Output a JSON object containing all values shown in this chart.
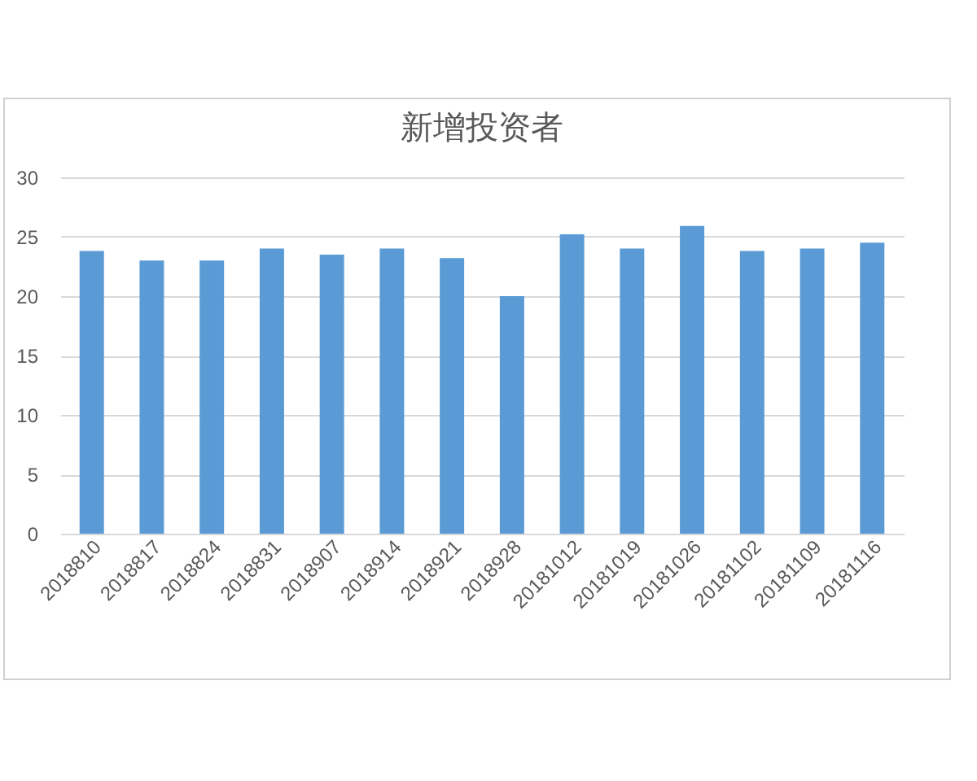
{
  "chart_data": {
    "type": "bar",
    "title": "新增投资者",
    "categories": [
      "2018810",
      "2018817",
      "2018824",
      "2018831",
      "2018907",
      "2018914",
      "2018921",
      "2018928",
      "20181012",
      "20181019",
      "20181026",
      "20181102",
      "20181109",
      "20181116"
    ],
    "values": [
      23.8,
      23.0,
      23.0,
      24.0,
      23.5,
      24.0,
      23.2,
      20.0,
      25.2,
      24.0,
      25.9,
      23.8,
      24.0,
      24.5
    ],
    "color": "#5b9bd5",
    "ylim": [
      0,
      30
    ],
    "yticks": [
      0,
      5,
      10,
      15,
      20,
      25,
      30
    ],
    "grid": "y"
  }
}
